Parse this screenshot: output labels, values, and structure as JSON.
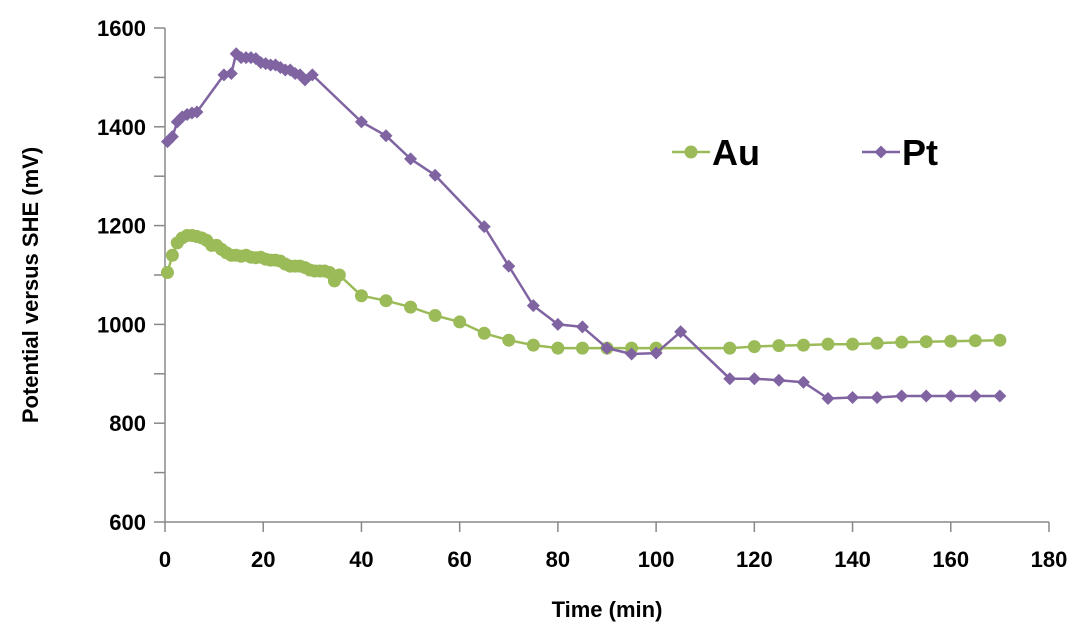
{
  "chart_data": {
    "type": "line",
    "xlabel": "Time (min)",
    "ylabel": "Potential versus SHE (mV)",
    "xlim": [
      0,
      180
    ],
    "ylim": [
      600,
      1600
    ],
    "xticks": [
      0,
      20,
      40,
      60,
      80,
      100,
      120,
      140,
      160,
      180
    ],
    "yticks": [
      600,
      800,
      1000,
      1200,
      1400,
      1600
    ],
    "grid": false,
    "legend_position": "top-right",
    "series": [
      {
        "name": "Au",
        "color": "#9BBB59",
        "marker": "circle",
        "x": [
          0.5,
          1.5,
          2.5,
          3.5,
          4.5,
          5.5,
          6.5,
          7.5,
          8.5,
          9.5,
          10.5,
          11.5,
          12.5,
          13.5,
          14.5,
          15.5,
          16.5,
          17.5,
          18.5,
          19.5,
          20.5,
          21.5,
          22.5,
          23.5,
          24.5,
          25.5,
          26.5,
          27.5,
          28.5,
          29.5,
          30.5,
          31.5,
          32.5,
          33.5,
          34.5,
          35.5,
          40,
          45,
          50,
          55,
          60,
          65,
          70,
          75,
          80,
          85,
          90,
          95,
          100,
          115,
          120,
          125,
          130,
          135,
          140,
          145,
          150,
          155,
          160,
          165,
          170
        ],
        "y": [
          1105,
          1140,
          1165,
          1175,
          1180,
          1180,
          1178,
          1175,
          1170,
          1160,
          1160,
          1152,
          1145,
          1140,
          1140,
          1138,
          1140,
          1136,
          1135,
          1136,
          1132,
          1130,
          1130,
          1128,
          1122,
          1118,
          1118,
          1118,
          1115,
          1110,
          1108,
          1108,
          1108,
          1105,
          1088,
          1100,
          1058,
          1048,
          1035,
          1018,
          1005,
          982,
          968,
          958,
          952,
          952,
          952,
          952,
          952,
          952,
          955,
          957,
          958,
          960,
          960,
          962,
          964,
          965,
          966,
          967,
          968
        ]
      },
      {
        "name": "Pt",
        "color": "#8064A2",
        "marker": "diamond",
        "x": [
          0.5,
          1.5,
          2.5,
          3.5,
          4.5,
          5.5,
          6.5,
          12,
          13.5,
          14.5,
          15.5,
          16.5,
          17.5,
          18.5,
          19.5,
          20.5,
          21.5,
          22.5,
          23.5,
          24.5,
          25.5,
          26.5,
          27.5,
          28.5,
          30,
          40,
          45,
          50,
          55,
          65,
          70,
          75,
          80,
          85,
          90,
          95,
          100,
          105,
          115,
          120,
          125,
          130,
          135,
          140,
          145,
          150,
          155,
          160,
          165,
          170
        ],
        "y": [
          1370,
          1380,
          1410,
          1420,
          1425,
          1428,
          1430,
          1505,
          1508,
          1548,
          1540,
          1540,
          1540,
          1538,
          1530,
          1528,
          1525,
          1525,
          1520,
          1515,
          1515,
          1508,
          1505,
          1495,
          1505,
          1410,
          1382,
          1335,
          1302,
          1198,
          1118,
          1038,
          1000,
          995,
          952,
          940,
          942,
          985,
          890,
          890,
          887,
          883,
          850,
          852,
          852,
          855,
          855,
          855,
          855,
          855
        ]
      }
    ]
  }
}
